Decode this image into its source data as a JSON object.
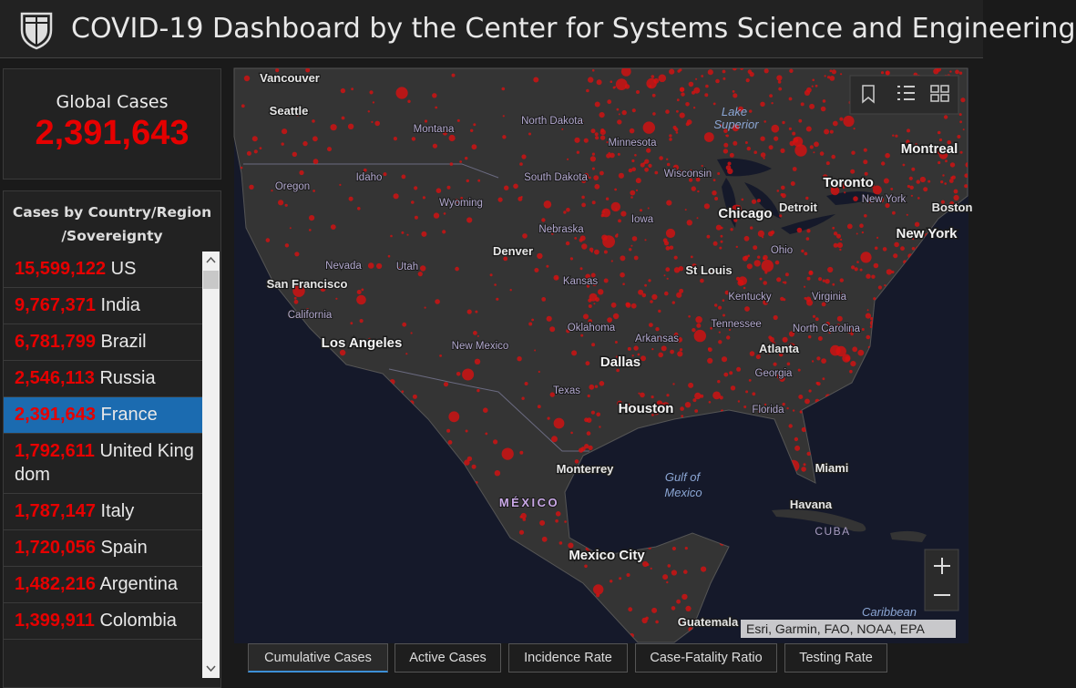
{
  "header": {
    "title": "COVID-19 Dashboard by the Center for Systems Science and Engineering"
  },
  "global_cases": {
    "label": "Global Cases",
    "value": "2,391,643"
  },
  "country_list": {
    "title_lines": [
      "Cases by Country/Region",
      "/Sovereignty"
    ],
    "rows": [
      {
        "cases": "15,599,122",
        "name": "US"
      },
      {
        "cases": "9,767,371",
        "name": "India"
      },
      {
        "cases": "6,781,799",
        "name": "Brazil"
      },
      {
        "cases": "2,546,113",
        "name": "Russia"
      },
      {
        "cases": "2,391,643",
        "name": "France",
        "selected": true
      },
      {
        "cases": "1,792,611",
        "name": "United Kingdom"
      },
      {
        "cases": "1,787,147",
        "name": "Italy"
      },
      {
        "cases": "1,720,056",
        "name": "Spain"
      },
      {
        "cases": "1,482,216",
        "name": "Argentina"
      },
      {
        "cases": "1,399,911",
        "name": "Colombia"
      }
    ]
  },
  "map": {
    "labels": [
      {
        "text": "Vancouver",
        "kind": "city"
      },
      {
        "text": "Seattle",
        "kind": "city"
      },
      {
        "text": "Montana",
        "kind": "state"
      },
      {
        "text": "North Dakota",
        "kind": "state"
      },
      {
        "text": "Minnesota",
        "kind": "state"
      },
      {
        "text": "Lake",
        "kind": "water"
      },
      {
        "text": "Superior",
        "kind": "water"
      },
      {
        "text": "Montreal",
        "kind": "major"
      },
      {
        "text": "Oregon",
        "kind": "state"
      },
      {
        "text": "Idaho",
        "kind": "state"
      },
      {
        "text": "South Dakota",
        "kind": "state"
      },
      {
        "text": "Wisconsin",
        "kind": "state"
      },
      {
        "text": "Toronto",
        "kind": "major"
      },
      {
        "text": "Wyoming",
        "kind": "state"
      },
      {
        "text": "Iowa",
        "kind": "state"
      },
      {
        "text": "Chicago",
        "kind": "major"
      },
      {
        "text": "Detroit",
        "kind": "city"
      },
      {
        "text": "New York",
        "kind": "state"
      },
      {
        "text": "Boston",
        "kind": "city"
      },
      {
        "text": "Nevada",
        "kind": "state"
      },
      {
        "text": "Utah",
        "kind": "state"
      },
      {
        "text": "Denver",
        "kind": "city"
      },
      {
        "text": "Nebraska",
        "kind": "state"
      },
      {
        "text": "New York",
        "kind": "major"
      },
      {
        "text": "San Francisco",
        "kind": "city"
      },
      {
        "text": "California",
        "kind": "state"
      },
      {
        "text": "Kansas",
        "kind": "state"
      },
      {
        "text": "St Louis",
        "kind": "city"
      },
      {
        "text": "Ohio",
        "kind": "state"
      },
      {
        "text": "Kentucky",
        "kind": "state"
      },
      {
        "text": "Virginia",
        "kind": "state"
      },
      {
        "text": "Los Angeles",
        "kind": "major"
      },
      {
        "text": "New Mexico",
        "kind": "state"
      },
      {
        "text": "Oklahoma",
        "kind": "state"
      },
      {
        "text": "Arkansas",
        "kind": "state"
      },
      {
        "text": "Tennessee",
        "kind": "state"
      },
      {
        "text": "North Carolina",
        "kind": "state"
      },
      {
        "text": "Atlanta",
        "kind": "city"
      },
      {
        "text": "Dallas",
        "kind": "major"
      },
      {
        "text": "Texas",
        "kind": "state"
      },
      {
        "text": "Georgia",
        "kind": "state"
      },
      {
        "text": "Houston",
        "kind": "major"
      },
      {
        "text": "Florida",
        "kind": "state"
      },
      {
        "text": "Monterrey",
        "kind": "city"
      },
      {
        "text": "Miami",
        "kind": "city"
      },
      {
        "text": "Gulf of",
        "kind": "water"
      },
      {
        "text": "Mexico",
        "kind": "water"
      },
      {
        "text": "MÉXICO",
        "kind": "country"
      },
      {
        "text": "Havana",
        "kind": "city"
      },
      {
        "text": "CUBA",
        "kind": "country2"
      },
      {
        "text": "Mexico City",
        "kind": "major"
      },
      {
        "text": "Guatemala",
        "kind": "city"
      },
      {
        "text": "Caribbean",
        "kind": "water"
      }
    ],
    "attribution": "Esri, Garmin, FAO, NOAA, EPA"
  },
  "tabs": [
    {
      "label": "Cumulative Cases",
      "active": true
    },
    {
      "label": "Active Cases"
    },
    {
      "label": "Incidence Rate"
    },
    {
      "label": "Case-Fatality Ratio"
    },
    {
      "label": "Testing Rate"
    }
  ]
}
